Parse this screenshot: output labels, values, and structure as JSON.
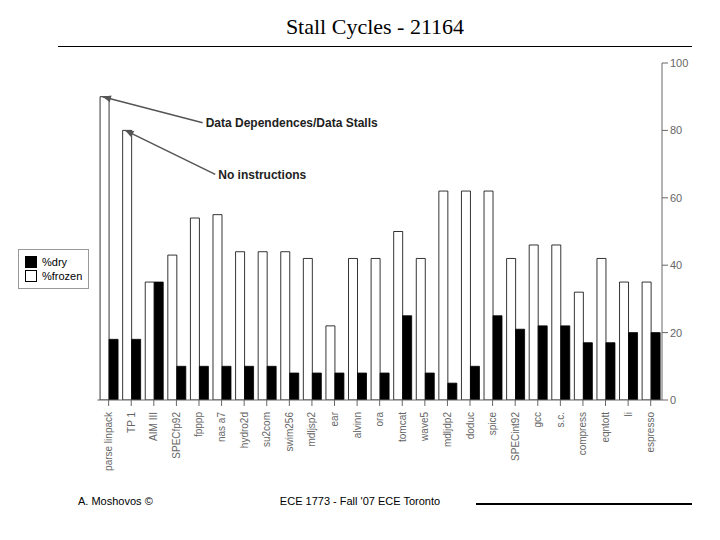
{
  "chart_data": {
    "type": "bar",
    "title": "Stall Cycles - 21164",
    "categories": [
      "parse linpack",
      "TP 1",
      "AIM III",
      "SPECfp92",
      "fpppp",
      "nas a7",
      "hydro2d",
      "su2com",
      "swim256",
      "mdljsp2",
      "ear",
      "alvinn",
      "ora",
      "tomcat",
      "wave5",
      "mdljdp2",
      "doduc",
      "spice",
      "SPECint92",
      "gcc",
      "s.c.",
      "compress",
      "eqntott",
      "li",
      "espresso"
    ],
    "series": [
      {
        "name": "%frozen",
        "color": "#ffffff",
        "values": [
          90,
          80,
          35,
          43,
          54,
          55,
          44,
          44,
          44,
          42,
          22,
          42,
          42,
          50,
          42,
          62,
          62,
          62,
          42,
          46,
          46,
          32,
          42,
          35,
          35
        ]
      },
      {
        "name": "%dry",
        "color": "#000000",
        "values": [
          18,
          18,
          35,
          10,
          10,
          10,
          10,
          10,
          8,
          8,
          8,
          8,
          8,
          25,
          8,
          5,
          10,
          25,
          21,
          22,
          22,
          17,
          17,
          20,
          20
        ]
      }
    ],
    "ylim": [
      0,
      100
    ],
    "yticks": [
      0,
      20,
      40,
      60,
      80,
      100
    ],
    "grid": false,
    "legend": "left",
    "annotations": [
      {
        "text": "Data Dependences/Data Stalls",
        "x": "parse linpack",
        "y": 90
      },
      {
        "text": "No instructions",
        "x": "TP 1",
        "y": 80
      }
    ],
    "footer": [
      "A. Moshovos ©",
      "ECE 1773 - Fall '07 ECE Toronto"
    ]
  }
}
